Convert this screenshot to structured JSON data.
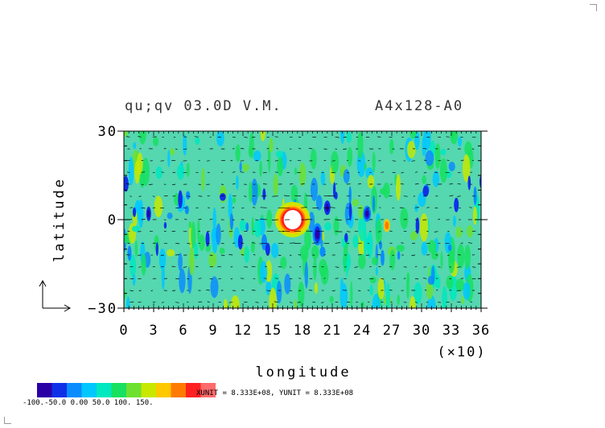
{
  "chart_data": {
    "type": "heatmap",
    "title_left": "qu;qv 03.0D V.M.",
    "title_right": "A4x128-A0",
    "xlabel": "longitude",
    "ylabel": "latitude",
    "x_multiplier": "(×10)",
    "xlim": [
      0,
      36
    ],
    "ylim": [
      -30,
      30
    ],
    "x_ticks": [
      "0",
      "3",
      "6",
      "9",
      "12",
      "15",
      "18",
      "21",
      "24",
      "27",
      "30",
      "33",
      "36"
    ],
    "y_ticks": [
      "30",
      "0",
      "−30"
    ],
    "unit_note": "XUNIT = 8.333E+08, YUNIT = 8.333E+08",
    "colorbar": {
      "levels_text": "-100.-50.0 0.00 50.0 100. 150.",
      "colors": [
        "#2a00a6",
        "#1030e8",
        "#0a8cff",
        "#00c8ff",
        "#00e8c0",
        "#18e060",
        "#6ee030",
        "#c8e800",
        "#ffc800",
        "#ff7a00",
        "#ff2020",
        "#ff6a6a"
      ]
    },
    "field_background": "#55d7b0",
    "features": [
      {
        "name": "central-anomaly",
        "lon": 17,
        "lat": 0,
        "value": "above 150"
      },
      {
        "name": "strong-negative",
        "lon": 19.5,
        "lat": -5,
        "value": "-100"
      },
      {
        "name": "negative-cell",
        "lon": 24.5,
        "lat": 2,
        "value": "-80"
      },
      {
        "name": "positive-cell",
        "lon": 26.5,
        "lat": -2,
        "value": "120"
      }
    ]
  }
}
